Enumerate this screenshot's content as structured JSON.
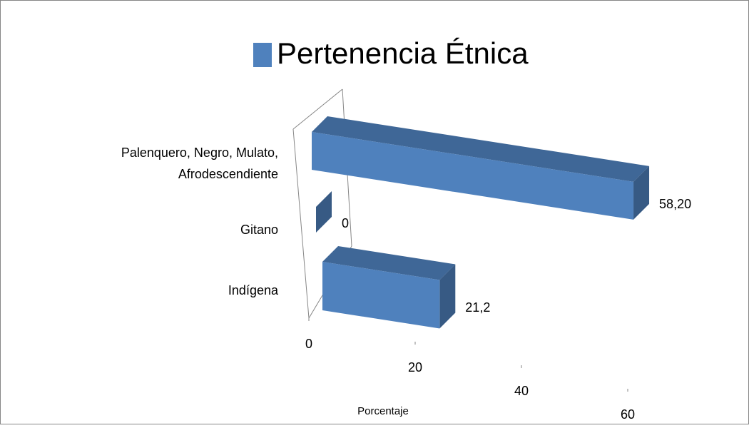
{
  "chart_data": {
    "type": "bar3d",
    "categories": [
      "Indígena",
      "Gitano",
      "Palenquero, Negro, Mulato, Afrodescendiente"
    ],
    "series": [
      {
        "name": "Pertenencia Étnica",
        "color": "#4f81bd",
        "values": [
          21.2,
          0,
          58.2
        ],
        "value_labels": [
          "21,2",
          "0",
          "58,20"
        ]
      }
    ],
    "x_label": "Porcentaje",
    "xlim": [
      0,
      60
    ],
    "xticks": [
      0,
      20,
      40,
      60
    ]
  }
}
